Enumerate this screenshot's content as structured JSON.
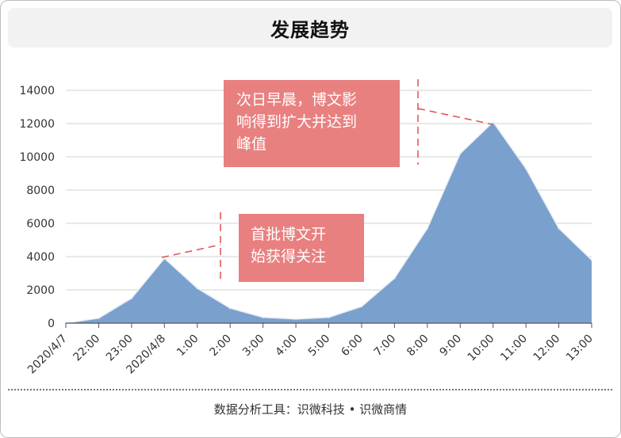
{
  "title": "发展趋势",
  "footer": "数据分析工具：识微科技 • 识微商情",
  "colors": {
    "area": "#7aa1cd",
    "area_stroke": "#e8eef6",
    "annotation_box": "#e98080",
    "annotation_line": "#e05050",
    "grid": "#d0d0d0"
  },
  "chart_data": {
    "type": "area",
    "categories": [
      "2020/4/7",
      "22:00",
      "23:00",
      "2020/4/8",
      "1:00",
      "2:00",
      "3:00",
      "4:00",
      "5:00",
      "6:00",
      "7:00",
      "8:00",
      "9:00",
      "10:00",
      "11:00",
      "12:00",
      "13:00"
    ],
    "series": [
      {
        "values": [
          0,
          300,
          1500,
          3900,
          2100,
          900,
          350,
          250,
          350,
          1000,
          2700,
          5700,
          10200,
          12100,
          9300,
          5700,
          3800
        ]
      }
    ],
    "ylim": [
      0,
      14000
    ],
    "yticks": [
      0,
      2000,
      4000,
      6000,
      8000,
      10000,
      12000,
      14000
    ],
    "grid": true,
    "annotations": [
      {
        "lines": [
          "首批博文开",
          "始获得关注"
        ],
        "category_index": 3
      },
      {
        "lines": [
          "次日早晨，博文影",
          "响得到扩大并达到",
          "峰值"
        ],
        "category_index": 13
      }
    ]
  }
}
